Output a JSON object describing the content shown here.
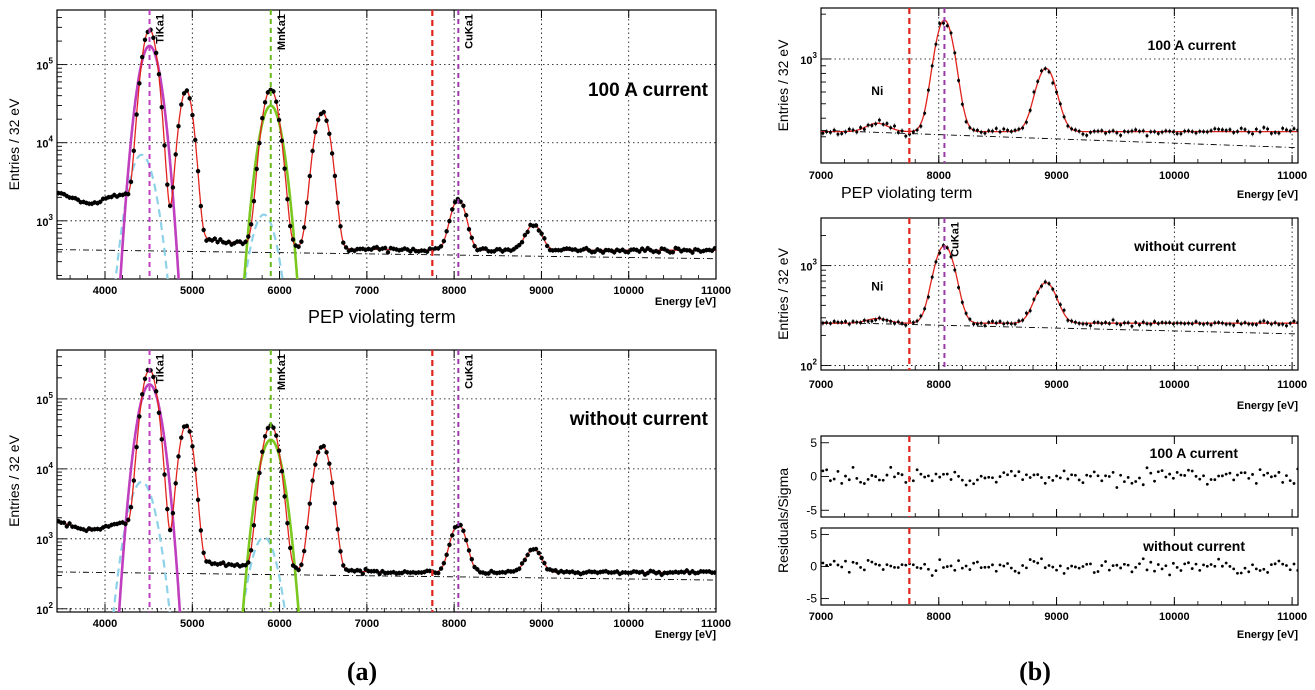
{
  "colors": {
    "fit": "#e0231c",
    "ti": "#c03fbf",
    "mn": "#7ac81e",
    "escape": "#8dd2e8",
    "pep_line": "#e0231c",
    "ti_marker": "#c03fbf",
    "mn_marker": "#69b91c",
    "cu_marker": "#9c3aa8",
    "points": "#000000"
  },
  "labels": {
    "panel_a": "(a)",
    "panel_b": "(b)",
    "pep_term": "PEP violating term",
    "ni": "Ni",
    "ylabel_counts": "Entries / 32 eV",
    "ylabel_resid": "Residuals/Sigma",
    "xlabel": "Energy [eV]"
  },
  "chart_data": [
    {
      "id": "a_top",
      "type": "scatter",
      "title": "100 A current",
      "xlabel": "Energy [eV]",
      "ylabel": "Entries / 32 eV",
      "xlim": [
        3450,
        11000
      ],
      "ylim": [
        180,
        500000
      ],
      "yscale": "log",
      "grid": true,
      "xticks": [
        "4000",
        "5000",
        "6000",
        "7000",
        "8000",
        "9000",
        "10000",
        "11000"
      ],
      "yticks": [
        "10^3",
        "10^4",
        "10^5"
      ],
      "markers": [
        {
          "name": "TiKa1",
          "x": 4510,
          "color": "#c03fbf"
        },
        {
          "name": "MnKa1",
          "x": 5899,
          "color": "#69b91c"
        },
        {
          "name": "CuKa1",
          "x": 8048,
          "color": "#9c3aa8"
        }
      ],
      "pep_x": 7750,
      "background": 420,
      "peaks": [
        {
          "x": 4510,
          "amp": 280000,
          "sigma": 65
        },
        {
          "x": 4930,
          "amp": 46000,
          "sigma": 60
        },
        {
          "x": 5899,
          "amp": 48000,
          "sigma": 72
        },
        {
          "x": 6490,
          "amp": 24000,
          "sigma": 72
        },
        {
          "x": 8048,
          "amp": 1450,
          "sigma": 75
        },
        {
          "x": 8910,
          "amp": 480,
          "sigma": 80
        }
      ]
    },
    {
      "id": "a_bottom",
      "type": "scatter",
      "title": "without current",
      "xlabel": "Energy [eV]",
      "ylabel": "Entries / 32 eV",
      "xlim": [
        3450,
        11000
      ],
      "ylim": [
        90,
        500000
      ],
      "yscale": "log",
      "grid": true,
      "xticks": [
        "4000",
        "5000",
        "6000",
        "7000",
        "8000",
        "9000",
        "10000",
        "11000"
      ],
      "yticks": [
        "10^2",
        "10^3",
        "10^4",
        "10^5"
      ],
      "markers": [
        {
          "name": "TiKa1",
          "x": 4510,
          "color": "#c03fbf"
        },
        {
          "name": "MnKa1",
          "x": 5899,
          "color": "#69b91c"
        },
        {
          "name": "CuKa1",
          "x": 8048,
          "color": "#9c3aa8"
        }
      ],
      "pep_x": 7750,
      "background": 330,
      "peaks": [
        {
          "x": 4510,
          "amp": 260000,
          "sigma": 65
        },
        {
          "x": 4930,
          "amp": 42000,
          "sigma": 60
        },
        {
          "x": 5899,
          "amp": 42000,
          "sigma": 72
        },
        {
          "x": 6490,
          "amp": 21000,
          "sigma": 72
        },
        {
          "x": 8048,
          "amp": 1280,
          "sigma": 75
        },
        {
          "x": 8910,
          "amp": 380,
          "sigma": 80
        }
      ]
    },
    {
      "id": "b_top",
      "type": "scatter",
      "title": "100 A current",
      "xlabel": "Energy [eV]",
      "ylabel": "Entries / 32 eV",
      "xlim": [
        7000,
        11050
      ],
      "ylim": [
        200,
        2200
      ],
      "yscale": "log",
      "grid": true,
      "xticks": [
        "7000",
        "8000",
        "9000",
        "10000",
        "11000"
      ],
      "yticks": [
        "10^3"
      ],
      "markers": [
        {
          "name": "",
          "x": 8048,
          "color": "#9c3aa8"
        }
      ],
      "ni_x": 7478,
      "pep_x": 7750,
      "background": 325,
      "peaks": [
        {
          "x": 7478,
          "amp": 45,
          "sigma": 90
        },
        {
          "x": 8048,
          "amp": 1500,
          "sigma": 75
        },
        {
          "x": 8910,
          "amp": 540,
          "sigma": 80
        }
      ]
    },
    {
      "id": "b_mid",
      "type": "scatter",
      "title": "without current",
      "xlabel": "Energy [eV]",
      "ylabel": "Entries / 32 eV",
      "xlim": [
        7000,
        11050
      ],
      "ylim": [
        90,
        3000
      ],
      "yscale": "log",
      "grid": true,
      "xticks": [
        "7000",
        "8000",
        "9000",
        "10000",
        "11000"
      ],
      "yticks": [
        "10^2",
        "10^3"
      ],
      "markers": [
        {
          "name": "CuKa1",
          "x": 8048,
          "color": "#9c3aa8"
        }
      ],
      "ni_x": 7478,
      "pep_x": 7750,
      "background": 265,
      "peaks": [
        {
          "x": 7478,
          "amp": 30,
          "sigma": 90
        },
        {
          "x": 8048,
          "amp": 1320,
          "sigma": 75
        },
        {
          "x": 8910,
          "amp": 410,
          "sigma": 80
        }
      ]
    },
    {
      "id": "b_res_top",
      "type": "scatter",
      "title": "100 A current",
      "xlim": [
        7000,
        11050
      ],
      "ylim": [
        -6,
        6
      ],
      "yscale": "linear",
      "grid": false,
      "yticks": [
        "5",
        "0",
        "-5"
      ],
      "pep_x": 7750
    },
    {
      "id": "b_res_bot",
      "type": "scatter",
      "title": "without current",
      "xlabel": "Energy [eV]",
      "xlim": [
        7000,
        11050
      ],
      "ylim": [
        -6,
        6
      ],
      "yscale": "linear",
      "grid": false,
      "xticks": [
        "7000",
        "8000",
        "9000",
        "10000",
        "11000"
      ],
      "yticks": [
        "5",
        "0",
        "-5"
      ],
      "pep_x": 7750
    }
  ]
}
